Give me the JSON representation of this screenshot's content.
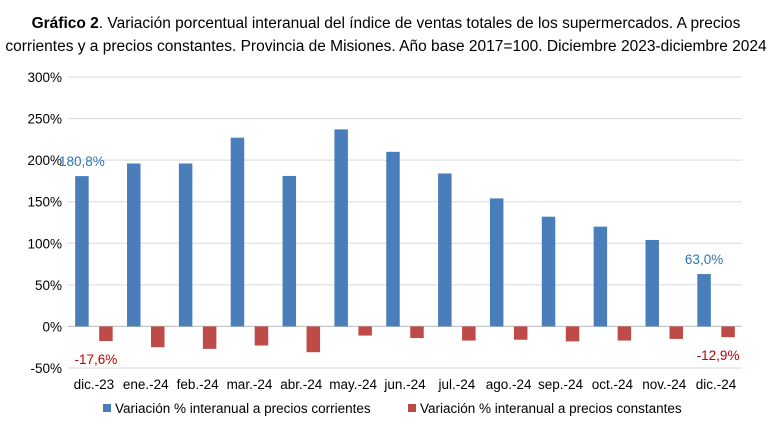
{
  "chart_title": {
    "label": "Gráfico 2",
    "line1": ". Variación porcentual interanual del índice de ventas totales de los supermercados. A precios",
    "line2": "corrientes y a precios constantes. Provincia de Misiones. Año base 2017=100. Diciembre 2023-diciembre 2024"
  },
  "colors": {
    "corrientes": "#4a7ebb",
    "constantes": "#be4b48",
    "label_blue": "#2e75b6",
    "label_red": "#c00000"
  },
  "chart_data": {
    "type": "bar",
    "title": "Gráfico 2. Variación porcentual interanual del índice de ventas totales de los supermercados. A precios corrientes y a precios constantes. Provincia de Misiones. Año base 2017=100. Diciembre 2023-diciembre 2024",
    "categories": [
      "dic.-23",
      "ene.-24",
      "feb.-24",
      "mar.-24",
      "abr.-24",
      "may.-24",
      "jun.-24",
      "jul.-24",
      "ago.-24",
      "sep.-24",
      "oct.-24",
      "nov.-24",
      "dic.-24"
    ],
    "series": [
      {
        "name": "Variación % interanual a precios corrientes",
        "values": [
          180.8,
          196,
          196,
          227,
          181,
          237,
          210,
          184,
          154,
          132,
          120,
          104,
          63.0
        ]
      },
      {
        "name": "Variación % interanual a precios constantes",
        "values": [
          -17.6,
          -25,
          -27,
          -23,
          -31,
          -11,
          -14,
          -17,
          -16,
          -18,
          -17,
          -15,
          -12.9
        ]
      }
    ],
    "ylim": [
      -50,
      300
    ],
    "yticks": [
      "300%",
      "250%",
      "200%",
      "150%",
      "100%",
      "50%",
      "0%",
      "-50%"
    ],
    "grid": true,
    "legend": "bottom",
    "data_labels": [
      {
        "series": 0,
        "index": 0,
        "text": "180,8%"
      },
      {
        "series": 0,
        "index": 12,
        "text": "63,0%"
      },
      {
        "series": 1,
        "index": 0,
        "text": "-17,6%"
      },
      {
        "series": 1,
        "index": 12,
        "text": "-12,9%"
      }
    ]
  }
}
